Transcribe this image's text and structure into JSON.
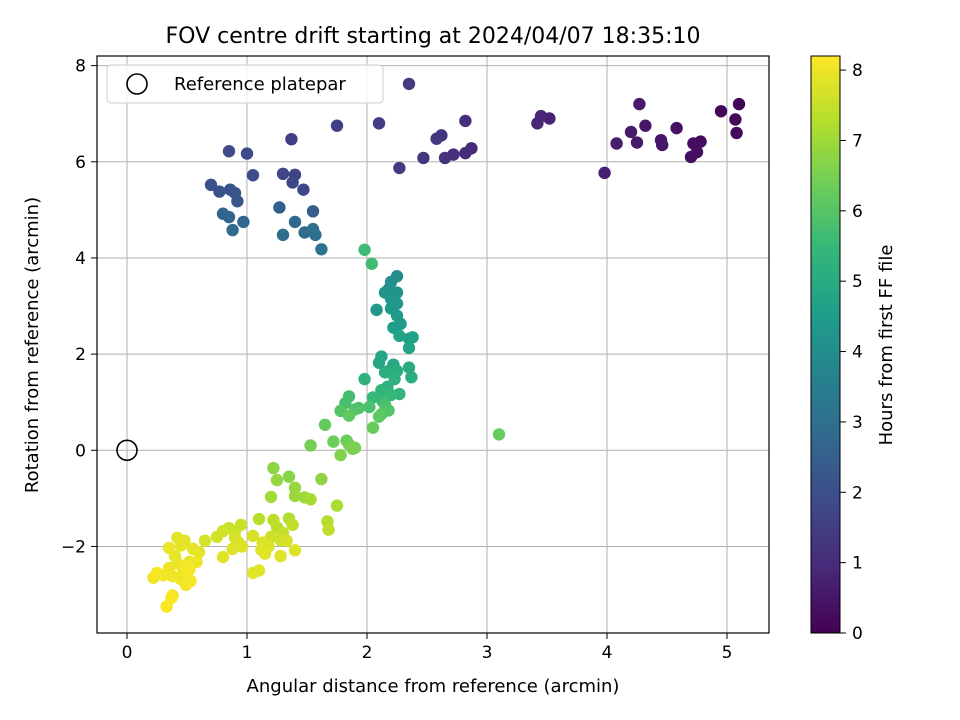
{
  "chart_data": {
    "type": "scatter",
    "title": "FOV centre drift starting at 2024/04/07 18:35:10",
    "xlabel": "Angular distance from reference (arcmin)",
    "ylabel": "Rotation from reference (arcmin)",
    "xlim": [
      -0.25,
      5.35
    ],
    "ylim": [
      -3.8,
      8.2
    ],
    "xticks": [
      0,
      1,
      2,
      3,
      4,
      5
    ],
    "yticks": [
      -2,
      0,
      2,
      4,
      6,
      8
    ],
    "grid": true,
    "legend": {
      "placement": "top-left",
      "entries": [
        "Reference platepar"
      ]
    },
    "reference_point": {
      "name": "Reference platepar",
      "x": 0,
      "y": 0,
      "marker": "open-circle"
    },
    "colorbar": {
      "label": "Hours from first FF file",
      "range": [
        0,
        8.2
      ],
      "ticks": [
        0,
        1,
        2,
        3,
        4,
        5,
        6,
        7,
        8
      ],
      "colormap": "viridis",
      "stops": [
        "#440154",
        "#482878",
        "#3e4989",
        "#31688e",
        "#26828e",
        "#1f9e89",
        "#35b779",
        "#6ece58",
        "#b5de2b",
        "#fde725"
      ]
    },
    "points": [
      [
        5.1,
        7.2,
        0.05
      ],
      [
        4.95,
        7.05,
        0.1
      ],
      [
        5.07,
        6.88,
        0.15
      ],
      [
        5.08,
        6.6,
        0.2
      ],
      [
        4.78,
        6.42,
        0.25
      ],
      [
        4.72,
        6.38,
        0.28
      ],
      [
        4.7,
        6.1,
        0.3
      ],
      [
        4.75,
        6.2,
        0.32
      ],
      [
        4.58,
        6.7,
        0.4
      ],
      [
        4.45,
        6.45,
        0.45
      ],
      [
        4.46,
        6.35,
        0.48
      ],
      [
        4.32,
        6.75,
        0.5
      ],
      [
        4.27,
        7.2,
        0.55
      ],
      [
        4.25,
        6.4,
        0.58
      ],
      [
        4.2,
        6.62,
        0.6
      ],
      [
        4.08,
        6.38,
        0.65
      ],
      [
        3.98,
        5.77,
        0.7
      ],
      [
        3.52,
        6.9,
        0.8
      ],
      [
        3.45,
        6.95,
        0.85
      ],
      [
        3.42,
        6.8,
        0.88
      ],
      [
        2.87,
        6.28,
        1.0
      ],
      [
        2.82,
        6.18,
        1.05
      ],
      [
        2.82,
        6.85,
        1.1
      ],
      [
        2.72,
        6.15,
        1.15
      ],
      [
        2.65,
        6.08,
        1.2
      ],
      [
        2.62,
        6.55,
        1.25
      ],
      [
        2.58,
        6.48,
        1.3
      ],
      [
        2.47,
        6.08,
        1.35
      ],
      [
        2.35,
        7.62,
        1.4
      ],
      [
        2.27,
        5.87,
        1.45
      ],
      [
        2.1,
        6.8,
        1.5
      ],
      [
        1.75,
        6.75,
        1.55
      ],
      [
        1.37,
        6.47,
        1.6
      ],
      [
        1.4,
        5.73,
        1.65
      ],
      [
        1.3,
        5.75,
        1.7
      ],
      [
        1.38,
        5.57,
        1.75
      ],
      [
        1.47,
        5.42,
        1.8
      ],
      [
        0.85,
        6.22,
        1.85
      ],
      [
        1.0,
        6.17,
        1.9
      ],
      [
        1.05,
        5.72,
        1.95
      ],
      [
        0.7,
        5.52,
        2.0
      ],
      [
        0.77,
        5.38,
        2.05
      ],
      [
        0.86,
        5.42,
        2.1
      ],
      [
        0.9,
        5.35,
        2.15
      ],
      [
        0.92,
        5.18,
        2.2
      ],
      [
        1.55,
        4.97,
        2.4
      ],
      [
        1.27,
        5.05,
        2.5
      ],
      [
        0.8,
        4.92,
        2.6
      ],
      [
        0.85,
        4.85,
        2.65
      ],
      [
        0.97,
        4.75,
        2.7
      ],
      [
        1.4,
        4.75,
        2.75
      ],
      [
        0.88,
        4.58,
        2.8
      ],
      [
        1.48,
        4.53,
        2.85
      ],
      [
        1.3,
        4.48,
        2.9
      ],
      [
        1.55,
        4.6,
        3.0
      ],
      [
        1.57,
        4.48,
        3.05
      ],
      [
        1.62,
        4.18,
        3.1
      ],
      [
        2.25,
        3.62,
        4.0
      ],
      [
        2.2,
        3.5,
        4.05
      ],
      [
        2.18,
        3.35,
        4.1
      ],
      [
        2.25,
        3.28,
        4.15
      ],
      [
        2.15,
        3.28,
        4.2
      ],
      [
        2.2,
        3.15,
        4.25
      ],
      [
        2.25,
        3.05,
        4.3
      ],
      [
        2.08,
        2.92,
        4.35
      ],
      [
        2.2,
        2.95,
        4.4
      ],
      [
        2.25,
        2.8,
        4.45
      ],
      [
        2.28,
        2.63,
        4.5
      ],
      [
        2.22,
        2.55,
        4.55
      ],
      [
        2.35,
        2.32,
        4.6
      ],
      [
        2.38,
        2.35,
        4.65
      ],
      [
        2.27,
        2.38,
        4.7
      ],
      [
        2.35,
        2.13,
        4.75
      ],
      [
        2.12,
        1.95,
        4.8
      ],
      [
        2.1,
        1.82,
        4.85
      ],
      [
        2.22,
        1.78,
        4.9
      ],
      [
        2.18,
        1.65,
        4.95
      ],
      [
        2.35,
        1.72,
        5.0
      ],
      [
        2.37,
        1.52,
        5.05
      ],
      [
        2.25,
        1.65,
        5.1
      ],
      [
        2.15,
        1.62,
        5.15
      ],
      [
        2.23,
        1.48,
        5.2
      ],
      [
        1.98,
        1.48,
        5.25
      ],
      [
        2.17,
        1.32,
        5.3
      ],
      [
        2.12,
        1.25,
        5.35
      ],
      [
        2.27,
        1.17,
        5.4
      ],
      [
        2.2,
        1.15,
        5.45
      ],
      [
        2.05,
        1.1,
        5.5
      ],
      [
        2.13,
        1.02,
        5.55
      ],
      [
        1.98,
        4.17,
        5.6
      ],
      [
        2.04,
        3.88,
        5.65
      ],
      [
        1.85,
        1.12,
        5.7
      ],
      [
        1.82,
        0.98,
        5.75
      ],
      [
        2.15,
        0.95,
        5.8
      ],
      [
        2.02,
        0.9,
        5.85
      ],
      [
        1.93,
        0.88,
        5.9
      ],
      [
        2.18,
        0.83,
        5.95
      ],
      [
        1.9,
        0.85,
        5.95
      ],
      [
        1.78,
        0.82,
        6.0
      ],
      [
        2.12,
        0.75,
        6.05
      ],
      [
        2.1,
        0.7,
        6.1
      ],
      [
        1.85,
        0.72,
        6.15
      ],
      [
        1.65,
        0.53,
        6.2
      ],
      [
        2.05,
        0.47,
        6.25
      ],
      [
        3.1,
        0.33,
        6.25
      ],
      [
        1.83,
        0.2,
        6.3
      ],
      [
        1.72,
        0.18,
        6.35
      ],
      [
        1.85,
        0.12,
        6.4
      ],
      [
        1.53,
        0.1,
        6.45
      ],
      [
        1.9,
        0.05,
        6.5
      ],
      [
        1.88,
        0.03,
        6.55
      ],
      [
        1.78,
        -0.1,
        6.6
      ],
      [
        1.35,
        -0.55,
        6.7
      ],
      [
        1.22,
        -0.37,
        6.75
      ],
      [
        1.62,
        -0.6,
        6.8
      ],
      [
        1.25,
        -0.62,
        6.85
      ],
      [
        1.4,
        -0.78,
        6.9
      ],
      [
        1.4,
        -0.95,
        6.95
      ],
      [
        1.48,
        -0.98,
        7.0
      ],
      [
        1.2,
        -0.97,
        7.05
      ],
      [
        1.53,
        -1.02,
        7.1
      ],
      [
        1.75,
        -1.15,
        7.15
      ],
      [
        1.35,
        -1.42,
        7.2
      ],
      [
        1.67,
        -1.48,
        7.25
      ],
      [
        1.1,
        -1.43,
        7.3
      ],
      [
        1.25,
        -1.6,
        7.35
      ],
      [
        1.22,
        -1.45,
        7.4
      ],
      [
        1.68,
        -1.65,
        7.4
      ],
      [
        1.38,
        -1.55,
        7.45
      ],
      [
        0.85,
        -1.62,
        7.5
      ],
      [
        1.3,
        -1.72,
        7.5
      ],
      [
        0.9,
        -1.68,
        7.55
      ],
      [
        0.95,
        -1.55,
        7.55
      ],
      [
        1.2,
        -1.8,
        7.6
      ],
      [
        1.28,
        -1.87,
        7.6
      ],
      [
        0.75,
        -1.8,
        7.65
      ],
      [
        0.8,
        -1.68,
        7.65
      ],
      [
        1.05,
        -1.78,
        7.7
      ],
      [
        0.9,
        -1.82,
        7.7
      ],
      [
        0.65,
        -1.88,
        7.7
      ],
      [
        1.33,
        -1.88,
        7.7
      ],
      [
        0.93,
        -1.92,
        7.75
      ],
      [
        1.13,
        -1.92,
        7.75
      ],
      [
        1.18,
        -2.0,
        7.75
      ],
      [
        1.12,
        -2.07,
        7.8
      ],
      [
        0.96,
        -2.0,
        7.8
      ],
      [
        0.88,
        -2.05,
        7.8
      ],
      [
        0.8,
        -2.22,
        7.85
      ],
      [
        1.4,
        -2.08,
        7.8
      ],
      [
        1.28,
        -2.2,
        7.8
      ],
      [
        1.15,
        -2.15,
        7.85
      ],
      [
        0.42,
        -1.82,
        7.85
      ],
      [
        0.48,
        -1.88,
        7.85
      ],
      [
        0.45,
        -1.98,
        7.9
      ],
      [
        0.55,
        -2.05,
        7.9
      ],
      [
        0.6,
        -2.12,
        7.9
      ],
      [
        0.35,
        -2.03,
        7.95
      ],
      [
        0.4,
        -2.2,
        7.95
      ],
      [
        0.52,
        -2.32,
        7.95
      ],
      [
        0.42,
        -2.35,
        7.95
      ],
      [
        0.35,
        -2.45,
        8.0
      ],
      [
        0.58,
        -2.32,
        8.0
      ],
      [
        0.47,
        -2.5,
        8.0
      ],
      [
        0.5,
        -2.62,
        8.0
      ],
      [
        1.05,
        -2.55,
        7.85
      ],
      [
        1.1,
        -2.5,
        7.85
      ],
      [
        0.3,
        -2.6,
        8.05
      ],
      [
        0.22,
        -2.65,
        8.05
      ],
      [
        0.38,
        -2.62,
        8.05
      ],
      [
        0.45,
        -2.68,
        8.05
      ],
      [
        0.53,
        -2.72,
        8.1
      ],
      [
        0.49,
        -2.8,
        8.1
      ],
      [
        0.25,
        -2.55,
        8.1
      ],
      [
        0.38,
        -3.02,
        8.1
      ],
      [
        0.37,
        -3.07,
        8.15
      ],
      [
        0.33,
        -3.25,
        8.15
      ],
      [
        0.48,
        -2.4,
        8.1
      ],
      [
        0.52,
        -2.48,
        8.1
      ]
    ]
  }
}
